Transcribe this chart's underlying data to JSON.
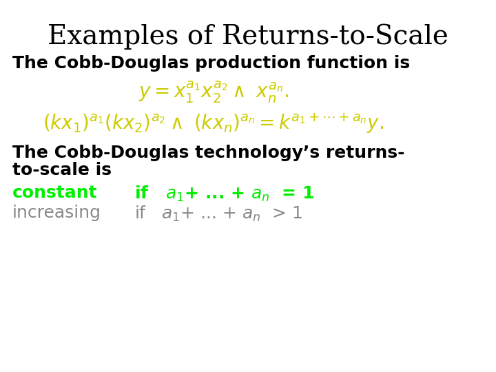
{
  "title": "Examples of Returns-to-Scale",
  "title_fontsize": 28,
  "title_color": "#000000",
  "bg_color": "#ffffff",
  "line1_text": "The Cobb-Douglas production function is",
  "line1_color": "#000000",
  "line1_fontsize": 18,
  "eq1_color": "#cccc00",
  "eq1_fontsize": 20,
  "eq2_color": "#cccc00",
  "eq2_fontsize": 20,
  "line2a_text": "The Cobb-Douglas technology’s returns-",
  "line2b_text": "to-scale is",
  "line2_color": "#000000",
  "line2_fontsize": 18,
  "constant_text": "constant",
  "constant_color": "#00ee00",
  "constant_fontsize": 18,
  "increasing_text": "increasing",
  "increasing_color": "#888888",
  "increasing_fontsize": 18,
  "if1_color": "#00ee00",
  "if2_color": "#888888",
  "if_fontsize": 18
}
